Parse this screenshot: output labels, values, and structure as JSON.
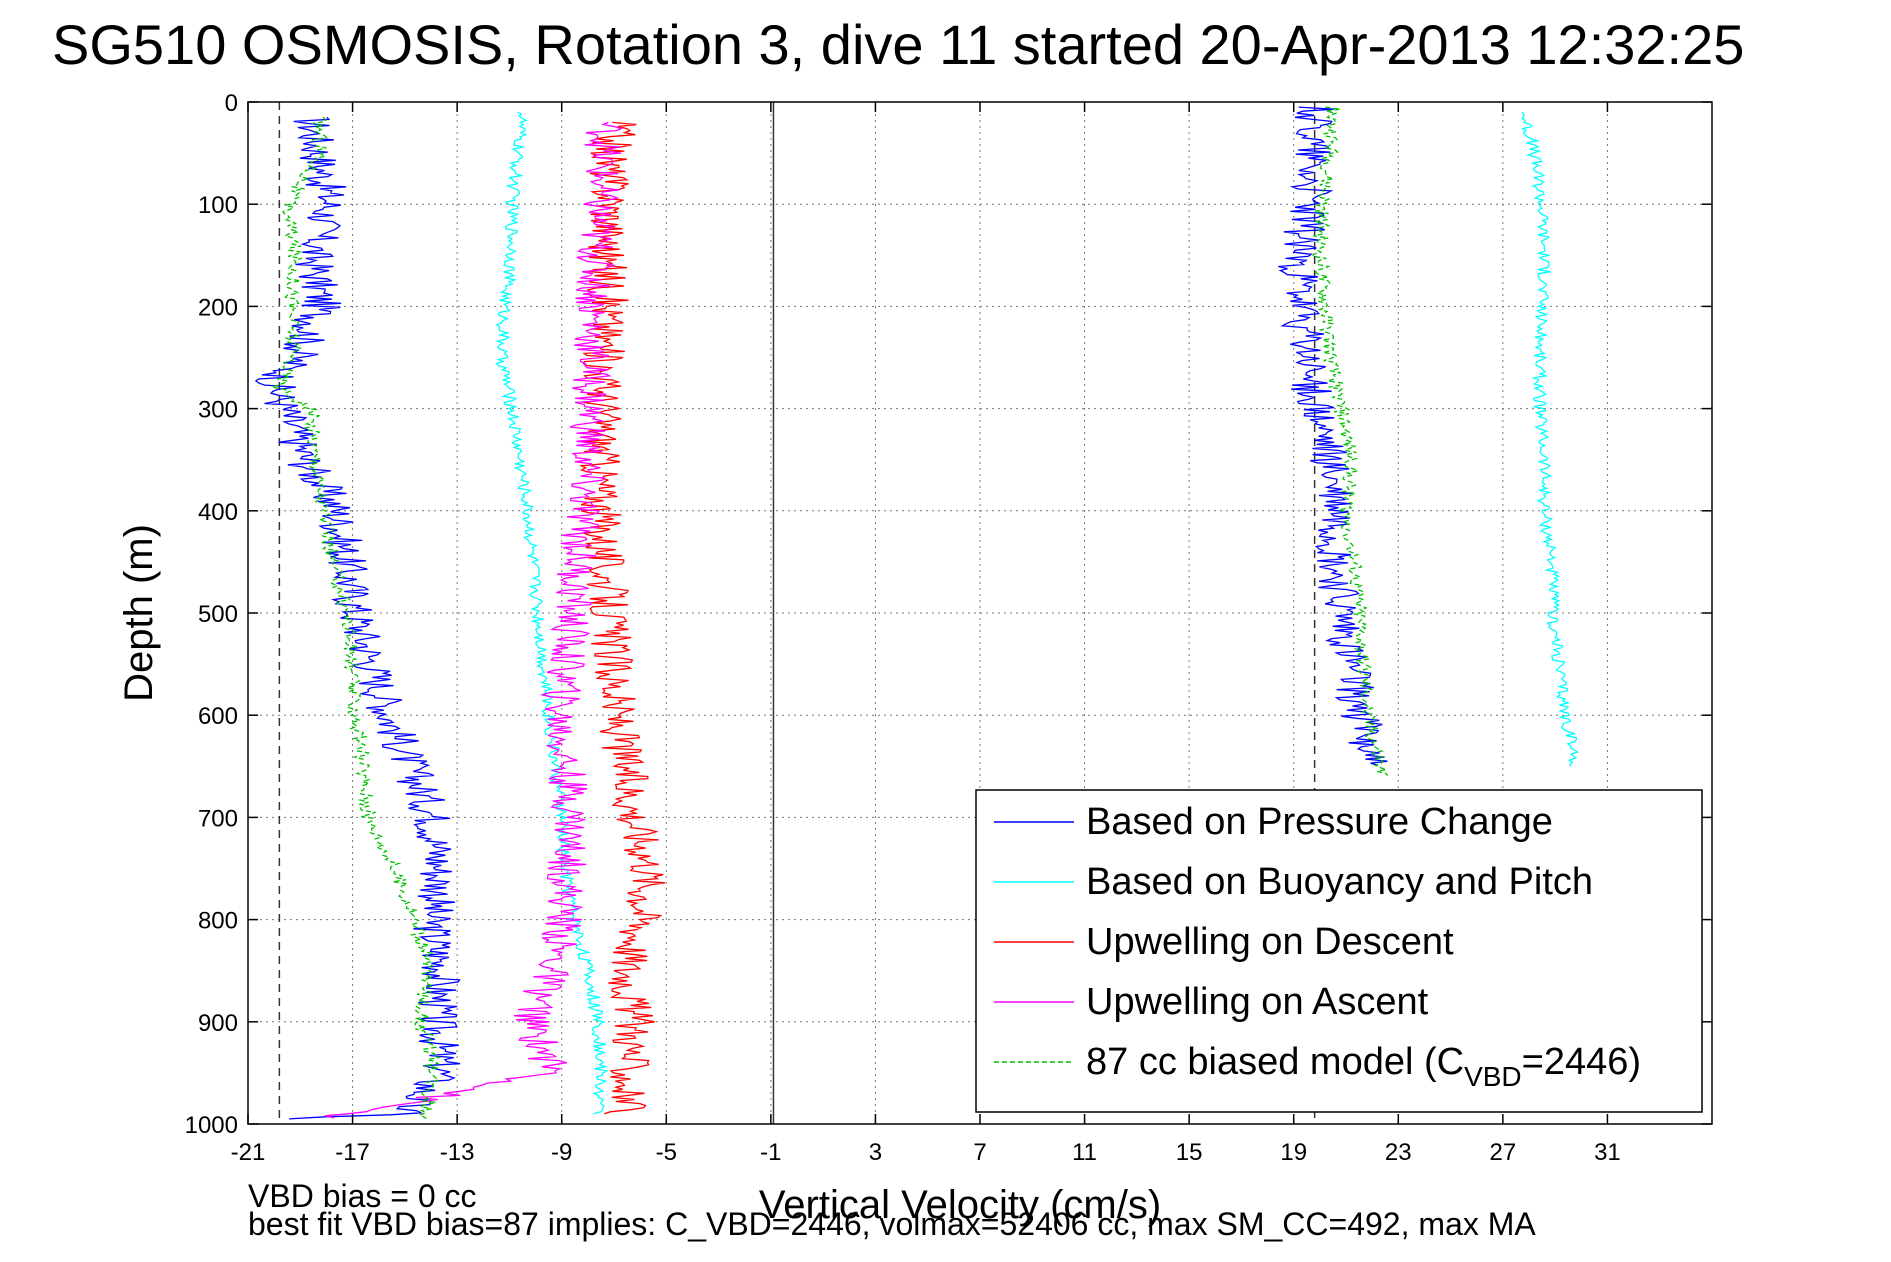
{
  "chart_data": {
    "type": "line",
    "title": "SG510 OSMOSIS, Rotation 3, dive 11 started 20-Apr-2013 12:32:25",
    "xlabel": "Vertical Velocity (cm/s)",
    "ylabel": "Depth (m)",
    "xlim": [
      -21,
      35
    ],
    "ylim": [
      1000,
      0
    ],
    "y_reversed": true,
    "xticks": [
      -21,
      -17,
      -13,
      -9,
      -5,
      -1,
      3,
      7,
      11,
      15,
      19,
      23,
      27,
      31
    ],
    "yticks": [
      0,
      100,
      200,
      300,
      400,
      500,
      600,
      700,
      800,
      900,
      1000
    ],
    "grid": true,
    "legend_position": "bottom-right",
    "reference_lines": {
      "dashed_vertical_x": [
        -19.8,
        19.8
      ],
      "solid_vertical_x": [
        -0.9
      ]
    },
    "series": [
      {
        "name": "Based on Pressure Change",
        "color": "#0000ff",
        "style": "solid",
        "x": [
          -18.6,
          -18.3,
          -17.9,
          -18.5,
          -18.2,
          -19.1,
          -20.0,
          -19.6,
          -18.8,
          -17.6,
          -16.9,
          -15.6,
          -14.8,
          -13.9,
          -13.7,
          -13.7,
          -13.9,
          -14.0,
          -13.6,
          -13.8,
          -13.6,
          -15.1,
          -19.1
        ],
        "y": [
          15,
          50,
          100,
          150,
          200,
          250,
          275,
          300,
          350,
          400,
          500,
          600,
          650,
          700,
          750,
          775,
          790,
          800,
          850,
          900,
          950,
          990,
          995
        ],
        "y2_profile": {
          "x": [
            19.8,
            19.8,
            19.6,
            19.2,
            19.2,
            19.5,
            19.8,
            20.3,
            20.7,
            20.5,
            20.8,
            21.1,
            21.6,
            22.1
          ],
          "y": [
            5,
            50,
            100,
            150,
            200,
            250,
            300,
            350,
            400,
            450,
            500,
            550,
            600,
            650
          ]
        }
      },
      {
        "name": "Based on Buoyancy and Pitch",
        "color": "#00ffff",
        "style": "solid",
        "x": [
          -10.5,
          -10.7,
          -10.9,
          -10.9,
          -11.2,
          -11.3,
          -10.9,
          -10.3,
          -9.9,
          -9.5,
          -9.0,
          -8.9,
          -8.5,
          -8.0,
          -7.6,
          -7.5,
          -7.6
        ],
        "y": [
          10,
          50,
          100,
          150,
          200,
          250,
          300,
          400,
          500,
          600,
          700,
          750,
          800,
          850,
          900,
          950,
          990
        ],
        "y2_profile": {
          "x": [
            27.8,
            28.2,
            28.5,
            28.6,
            28.5,
            28.4,
            28.4,
            28.6,
            28.6,
            28.9,
            28.9,
            29.4,
            29.8
          ],
          "y": [
            10,
            50,
            100,
            150,
            200,
            250,
            300,
            350,
            400,
            450,
            500,
            600,
            650
          ]
        }
      },
      {
        "name": "Upwelling on Descent",
        "color": "#ff0000",
        "style": "solid",
        "x": [
          -6.8,
          -7.2,
          -7.1,
          -7.3,
          -7.2,
          -7.4,
          -7.4,
          -7.5,
          -7.5,
          -7.2,
          -6.9,
          -6.2,
          -5.6,
          -5.9,
          -6.5,
          -6.2,
          -6.6
        ],
        "y": [
          20,
          50,
          100,
          150,
          200,
          250,
          300,
          350,
          400,
          500,
          600,
          700,
          750,
          800,
          850,
          900,
          990
        ]
      },
      {
        "name": "Upwelling on Ascent",
        "color": "#ff00ff",
        "style": "solid",
        "x": [
          -7.3,
          -7.6,
          -7.8,
          -7.9,
          -8.2,
          -8.6,
          -9.1,
          -8.6,
          -8.8,
          -8.9,
          -9.4,
          -10.2,
          -9.3,
          -18.0
        ],
        "y": [
          20,
          100,
          200,
          300,
          400,
          500,
          600,
          700,
          750,
          800,
          850,
          900,
          950,
          995
        ]
      },
      {
        "name": "87 cc biased model (C",
        "name_sub": "VBD",
        "name_suffix": "=2446)",
        "color": "#00c000",
        "style": "dashed",
        "x": [
          -18.3,
          -18.2,
          -19.5,
          -19.2,
          -19.3,
          -19.3,
          -19.8,
          -18.6,
          -18.4,
          -18.1,
          -17.8,
          -17.2,
          -16.9,
          -16.6,
          -16.4,
          -15.4,
          -14.6,
          -14.1,
          -14.4,
          -14.0,
          -14.0,
          -14.2
        ],
        "y": [
          15,
          50,
          100,
          150,
          200,
          250,
          280,
          300,
          350,
          400,
          450,
          500,
          600,
          650,
          700,
          750,
          800,
          850,
          900,
          930,
          960,
          995
        ],
        "y2_profile": {
          "x": [
            20.5,
            20.4,
            20.1,
            20.0,
            20.2,
            20.4,
            20.8,
            21.2,
            21.0,
            21.3,
            21.5,
            21.8,
            22.4
          ],
          "y": [
            5,
            50,
            100,
            150,
            200,
            250,
            300,
            350,
            400,
            450,
            500,
            600,
            660
          ]
        }
      }
    ]
  },
  "notes": {
    "bias_line": "VBD bias = 0 cc",
    "fit_line": "best fit VBD bias=87 implies: C_VBD=2446, volmax=52406 cc, max SM_CC=492, max MA"
  }
}
